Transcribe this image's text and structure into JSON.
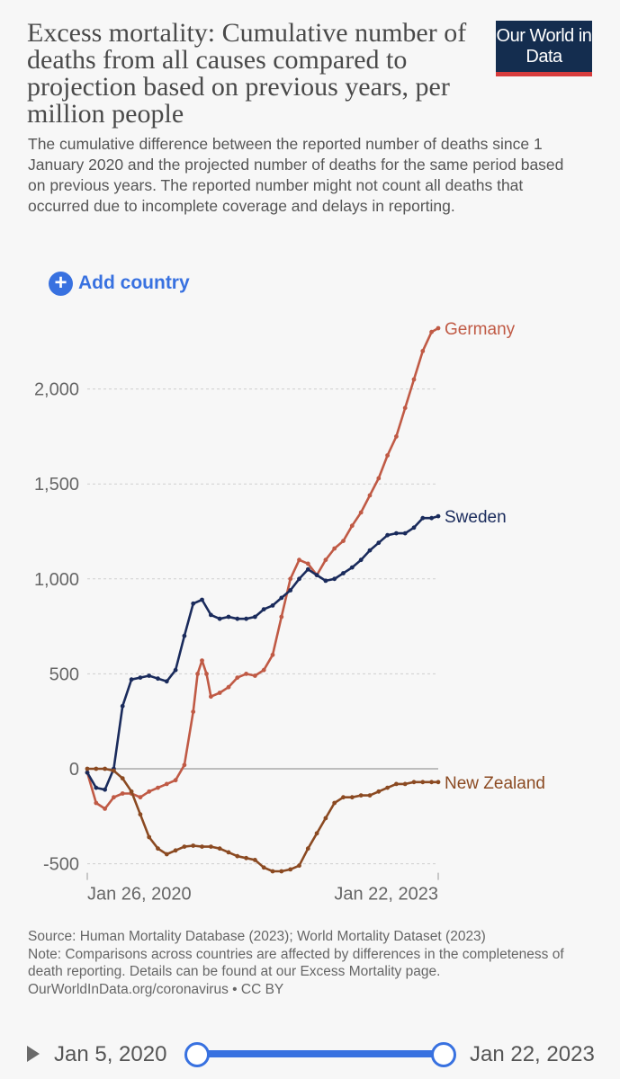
{
  "header": {
    "title": "Excess mortality: Cumulative number of deaths from all causes compared to projection based on previous years, per million people",
    "subtitle": "The cumulative difference between the reported number of deaths since 1 January 2020 and the projected number of deaths for the same period based on previous years. The reported number might not count all deaths that occurred due to incomplete coverage and delays in reporting.",
    "logo_text": "Our World in Data"
  },
  "controls": {
    "add_country_label": "Add country"
  },
  "colors": {
    "Germany": "#c05a45",
    "Sweden": "#1a2b5c",
    "New Zealand": "#8b4a22",
    "accent": "#3871e0",
    "logo_bg": "#142d4f",
    "logo_bar": "#d73c3c"
  },
  "chart_data": {
    "type": "line",
    "title": "",
    "xlabel": "",
    "ylabel": "",
    "x_range": [
      "2020-01-05",
      "2023-01-22"
    ],
    "xticks": [
      "Jan 26, 2020",
      "Jan 22, 2023"
    ],
    "ylim": [
      -500,
      2300
    ],
    "yticks": [
      -500,
      0,
      500,
      1000,
      1500,
      2000
    ],
    "ytick_labels": [
      "-500",
      "0",
      "500",
      "1,000",
      "1,500",
      "2,000"
    ],
    "grid": true,
    "series": [
      {
        "name": "Germany",
        "x": [
          "2020-01-05",
          "2020-02-02",
          "2020-03-01",
          "2020-03-29",
          "2020-04-26",
          "2020-05-24",
          "2020-06-21",
          "2020-07-19",
          "2020-08-16",
          "2020-09-13",
          "2020-10-11",
          "2020-11-08",
          "2020-12-06",
          "2020-12-20",
          "2021-01-03",
          "2021-01-17",
          "2021-01-31",
          "2021-02-28",
          "2021-03-28",
          "2021-04-25",
          "2021-05-23",
          "2021-06-20",
          "2021-07-18",
          "2021-08-15",
          "2021-09-12",
          "2021-10-10",
          "2021-11-07",
          "2021-12-05",
          "2022-01-02",
          "2022-01-30",
          "2022-02-27",
          "2022-03-27",
          "2022-04-24",
          "2022-05-22",
          "2022-06-19",
          "2022-07-17",
          "2022-08-14",
          "2022-09-11",
          "2022-10-09",
          "2022-11-06",
          "2022-12-04",
          "2023-01-01",
          "2023-01-22"
        ],
        "values": [
          -20,
          -180,
          -210,
          -150,
          -130,
          -130,
          -150,
          -120,
          -100,
          -80,
          -60,
          20,
          300,
          500,
          570,
          500,
          380,
          400,
          430,
          480,
          500,
          490,
          520,
          600,
          800,
          1000,
          1100,
          1080,
          1020,
          1100,
          1160,
          1200,
          1280,
          1350,
          1440,
          1530,
          1650,
          1750,
          1900,
          2050,
          2200,
          2300,
          2320
        ]
      },
      {
        "name": "Sweden",
        "x": [
          "2020-01-05",
          "2020-02-02",
          "2020-03-01",
          "2020-03-29",
          "2020-04-26",
          "2020-05-24",
          "2020-06-21",
          "2020-07-19",
          "2020-08-16",
          "2020-09-13",
          "2020-10-11",
          "2020-11-08",
          "2020-12-06",
          "2021-01-03",
          "2021-01-31",
          "2021-02-28",
          "2021-03-28",
          "2021-04-25",
          "2021-05-23",
          "2021-06-20",
          "2021-07-18",
          "2021-08-15",
          "2021-09-12",
          "2021-10-10",
          "2021-11-07",
          "2021-12-05",
          "2022-01-02",
          "2022-01-30",
          "2022-02-27",
          "2022-03-27",
          "2022-04-24",
          "2022-05-22",
          "2022-06-19",
          "2022-07-17",
          "2022-08-14",
          "2022-09-11",
          "2022-10-09",
          "2022-11-06",
          "2022-12-04",
          "2023-01-01",
          "2023-01-22"
        ],
        "values": [
          -20,
          -100,
          -110,
          0,
          330,
          470,
          480,
          490,
          475,
          460,
          520,
          700,
          870,
          890,
          810,
          790,
          800,
          790,
          790,
          800,
          840,
          860,
          900,
          940,
          1000,
          1050,
          1020,
          990,
          1000,
          1030,
          1060,
          1100,
          1150,
          1190,
          1230,
          1240,
          1240,
          1270,
          1320,
          1320,
          1330
        ]
      },
      {
        "name": "New Zealand",
        "x": [
          "2020-01-05",
          "2020-02-02",
          "2020-03-01",
          "2020-03-29",
          "2020-04-26",
          "2020-05-24",
          "2020-06-21",
          "2020-07-19",
          "2020-08-16",
          "2020-09-13",
          "2020-10-11",
          "2020-11-08",
          "2020-12-06",
          "2021-01-03",
          "2021-01-31",
          "2021-02-28",
          "2021-03-28",
          "2021-04-25",
          "2021-05-23",
          "2021-06-20",
          "2021-07-18",
          "2021-08-15",
          "2021-09-12",
          "2021-10-10",
          "2021-11-07",
          "2021-12-05",
          "2022-01-02",
          "2022-01-30",
          "2022-02-27",
          "2022-03-27",
          "2022-04-24",
          "2022-05-22",
          "2022-06-19",
          "2022-07-17",
          "2022-08-14",
          "2022-09-11",
          "2022-10-09",
          "2022-11-06",
          "2022-12-04",
          "2023-01-01",
          "2023-01-22"
        ],
        "values": [
          0,
          0,
          0,
          -10,
          -50,
          -120,
          -240,
          -360,
          -420,
          -450,
          -430,
          -410,
          -405,
          -410,
          -410,
          -420,
          -440,
          -460,
          -470,
          -480,
          -520,
          -540,
          -540,
          -530,
          -510,
          -420,
          -340,
          -260,
          -180,
          -150,
          -150,
          -140,
          -140,
          -120,
          -100,
          -80,
          -80,
          -70,
          -70,
          -70,
          -70
        ]
      }
    ],
    "series_labels": [
      "Germany",
      "Sweden",
      "New Zealand"
    ]
  },
  "footer": {
    "source": "Source: Human Mortality Database (2023); World Mortality Dataset (2023)",
    "note": "Note: Comparisons across countries are affected by differences in the completeness of death reporting. Details can be found at our Excess Mortality page.",
    "url_license": "OurWorldInData.org/coronavirus • CC BY"
  },
  "timeline": {
    "start_label": "Jan 5, 2020",
    "end_label": "Jan 22, 2023"
  }
}
